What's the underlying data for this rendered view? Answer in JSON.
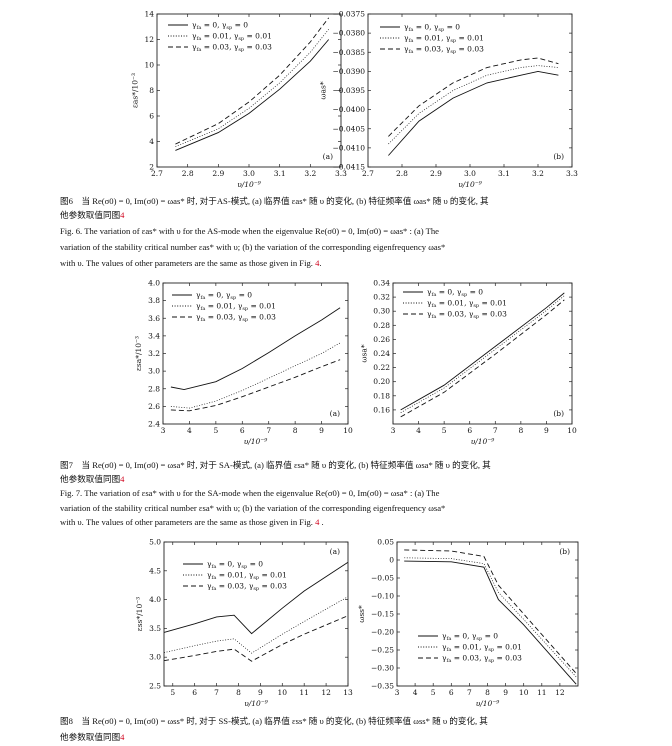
{
  "legend_symbol": {
    "gamma": "γ",
    "sub1": "fa",
    "sub2": "sp"
  },
  "legend_values": [
    [
      "0",
      "0"
    ],
    [
      "0.01",
      "0.01"
    ],
    [
      "0.03",
      "0.03"
    ]
  ],
  "chart_data": [
    {
      "id": "fig6a",
      "type": "line",
      "panel": "(a)",
      "xlabel": "υ/10⁻⁹",
      "ylabel": "εas*/10⁻³",
      "xlim": [
        2.7,
        3.3
      ],
      "ylim": [
        2,
        14
      ],
      "xticks": [
        "2.7",
        "2.8",
        "2.9",
        "3.0",
        "3.1",
        "3.2",
        "3.3"
      ],
      "yticks": [
        "2",
        "4",
        "6",
        "8",
        "10",
        "12",
        "14"
      ],
      "legend": "top-left",
      "series": [
        {
          "name": "γfa = 0, γsp = 0",
          "style": "solid",
          "x": [
            2.76,
            2.9,
            3.0,
            3.1,
            3.2,
            3.26
          ],
          "y": [
            3.3,
            4.7,
            6.2,
            8.1,
            10.3,
            12.0
          ]
        },
        {
          "name": "γfa = 0.01, γsp = 0.01",
          "style": "dotted",
          "x": [
            2.76,
            2.9,
            3.0,
            3.1,
            3.2,
            3.26
          ],
          "y": [
            3.6,
            5.0,
            6.6,
            8.6,
            11.0,
            12.8
          ]
        },
        {
          "name": "γfa = 0.03, γsp = 0.03",
          "style": "dashed",
          "x": [
            2.76,
            2.9,
            3.0,
            3.1,
            3.2,
            3.26
          ],
          "y": [
            3.8,
            5.4,
            7.1,
            9.2,
            11.8,
            13.7
          ]
        }
      ]
    },
    {
      "id": "fig6b",
      "type": "line",
      "panel": "(b)",
      "xlabel": "υ/10⁻⁹",
      "ylabel": "ωas*",
      "xlim": [
        2.7,
        3.3
      ],
      "ylim": [
        -0.0415,
        -0.0375
      ],
      "xticks": [
        "2.7",
        "2.8",
        "2.9",
        "3.0",
        "3.1",
        "3.2",
        "3.3"
      ],
      "yticks": [
        "−0.0415",
        "−0.0410",
        "−0.0405",
        "−0.0400",
        "−0.0395",
        "−0.0390",
        "−0.0385",
        "−0.0380",
        "−0.0375"
      ],
      "legend": "top-left",
      "series": [
        {
          "name": "γfa = 0, γsp = 0",
          "style": "solid",
          "x": [
            2.76,
            2.85,
            2.95,
            3.05,
            3.15,
            3.2,
            3.26
          ],
          "y": [
            -0.0412,
            -0.0403,
            -0.0397,
            -0.0393,
            -0.0391,
            -0.039,
            -0.0391
          ]
        },
        {
          "name": "γfa = 0.01, γsp = 0.01",
          "style": "dotted",
          "x": [
            2.76,
            2.85,
            2.95,
            3.05,
            3.15,
            3.2,
            3.26
          ],
          "y": [
            -0.0409,
            -0.0401,
            -0.0395,
            -0.0391,
            -0.0389,
            -0.03885,
            -0.0389
          ]
        },
        {
          "name": "γfa = 0.03, γsp = 0.03",
          "style": "dashed",
          "x": [
            2.76,
            2.85,
            2.95,
            3.05,
            3.15,
            3.2,
            3.26
          ],
          "y": [
            -0.0407,
            -0.0399,
            -0.0393,
            -0.0389,
            -0.0387,
            -0.03865,
            -0.0388
          ]
        }
      ]
    },
    {
      "id": "fig7a",
      "type": "line",
      "panel": "(a)",
      "xlabel": "υ/10⁻⁹",
      "ylabel": "εsa*/10⁻³",
      "xlim": [
        3,
        10
      ],
      "ylim": [
        2.4,
        4.0
      ],
      "xticks": [
        "3",
        "4",
        "5",
        "6",
        "7",
        "8",
        "9",
        "10"
      ],
      "yticks": [
        "2.4",
        "2.6",
        "2.8",
        "3.0",
        "3.2",
        "3.4",
        "3.6",
        "3.8",
        "4.0"
      ],
      "legend": "top-left",
      "series": [
        {
          "name": "γfa = 0, γsp = 0",
          "style": "solid",
          "x": [
            3.3,
            3.8,
            5,
            6,
            7,
            8,
            9,
            9.7
          ],
          "y": [
            2.82,
            2.79,
            2.88,
            3.03,
            3.21,
            3.4,
            3.58,
            3.72
          ]
        },
        {
          "name": "γfa = 0.01, γsp = 0.01",
          "style": "dotted",
          "x": [
            3.3,
            4,
            5,
            6,
            7,
            8,
            9,
            9.7
          ],
          "y": [
            2.6,
            2.58,
            2.66,
            2.78,
            2.92,
            3.06,
            3.2,
            3.32
          ]
        },
        {
          "name": "γfa = 0.03, γsp = 0.03",
          "style": "dashed",
          "x": [
            3.3,
            4,
            5,
            6,
            7,
            8,
            9,
            9.7
          ],
          "y": [
            2.56,
            2.55,
            2.61,
            2.71,
            2.82,
            2.93,
            3.05,
            3.13
          ]
        }
      ]
    },
    {
      "id": "fig7b",
      "type": "line",
      "panel": "(b)",
      "xlabel": "υ/10⁻⁹",
      "ylabel": "ωsa*",
      "xlim": [
        3,
        10
      ],
      "ylim": [
        0.14,
        0.34
      ],
      "xticks": [
        "3",
        "4",
        "5",
        "6",
        "7",
        "8",
        "9",
        "10"
      ],
      "yticks": [
        "0.16",
        "0.18",
        "0.20",
        "0.22",
        "0.24",
        "0.26",
        "0.28",
        "0.30",
        "0.32",
        "0.34"
      ],
      "legend": "top-left",
      "series": [
        {
          "name": "γfa = 0, γsp = 0",
          "style": "solid",
          "x": [
            3.3,
            5,
            7,
            9,
            9.7
          ],
          "y": [
            0.16,
            0.195,
            0.25,
            0.305,
            0.326
          ]
        },
        {
          "name": "γfa = 0.01, γsp = 0.01",
          "style": "dotted",
          "x": [
            3.3,
            5,
            7,
            9,
            9.7
          ],
          "y": [
            0.156,
            0.191,
            0.246,
            0.301,
            0.322
          ]
        },
        {
          "name": "γfa = 0.03, γsp = 0.03",
          "style": "dashed",
          "x": [
            3.3,
            5,
            7,
            9,
            9.7
          ],
          "y": [
            0.15,
            0.185,
            0.239,
            0.295,
            0.316
          ]
        }
      ]
    },
    {
      "id": "fig8a",
      "type": "line",
      "panel": "(a)",
      "xlabel": "υ/10⁻⁹",
      "ylabel": "εss*/10⁻³",
      "xlim": [
        4.6,
        13
      ],
      "ylim": [
        2.5,
        5.0
      ],
      "xticks": [
        "5",
        "6",
        "7",
        "8",
        "9",
        "10",
        "11",
        "12",
        "13"
      ],
      "yticks": [
        "2.5",
        "3.0",
        "3.5",
        "4.0",
        "4.5",
        "5.0"
      ],
      "legend": "top-left",
      "series": [
        {
          "name": "γfa = 0, γsp = 0",
          "style": "solid",
          "x": [
            4.6,
            6,
            7,
            7.8,
            8.6,
            10,
            11,
            13
          ],
          "y": [
            3.43,
            3.58,
            3.7,
            3.73,
            3.41,
            3.85,
            4.15,
            4.65
          ]
        },
        {
          "name": "γfa = 0.01, γsp = 0.01",
          "style": "dotted",
          "x": [
            4.6,
            6,
            7,
            7.8,
            8.6,
            10,
            11,
            13
          ],
          "y": [
            3.08,
            3.2,
            3.28,
            3.32,
            3.07,
            3.4,
            3.62,
            4.05
          ]
        },
        {
          "name": "γfa = 0.03, γsp = 0.03",
          "style": "dashed",
          "x": [
            4.6,
            6,
            7,
            7.8,
            8.6,
            10,
            11,
            13
          ],
          "y": [
            2.94,
            3.03,
            3.1,
            3.14,
            2.93,
            3.22,
            3.4,
            3.72
          ]
        }
      ]
    },
    {
      "id": "fig8b",
      "type": "line",
      "panel": "(b)",
      "xlabel": "υ/10⁻⁹",
      "ylabel": "ωss*",
      "xlim": [
        3,
        13
      ],
      "ylim": [
        -0.35,
        0.05
      ],
      "xticks": [
        "3",
        "4",
        "5",
        "6",
        "7",
        "8",
        "9",
        "10",
        "11",
        "12"
      ],
      "yticks": [
        "−0.35",
        "−0.30",
        "−0.25",
        "−0.20",
        "−0.15",
        "−0.10",
        "−0.05",
        "0",
        "0.05"
      ],
      "legend": "bottom-left",
      "series": [
        {
          "name": "γfa = 0, γsp = 0",
          "style": "solid",
          "x": [
            3.4,
            6,
            7.8,
            8.6,
            10,
            12.9
          ],
          "y": [
            -0.003,
            -0.005,
            -0.02,
            -0.11,
            -0.18,
            -0.345
          ]
        },
        {
          "name": "γfa = 0.01, γsp = 0.01",
          "style": "dotted",
          "x": [
            3.4,
            6,
            7.8,
            8.6,
            10,
            12.9
          ],
          "y": [
            0.006,
            0.004,
            -0.01,
            -0.09,
            -0.165,
            -0.325
          ]
        },
        {
          "name": "γfa = 0.03, γsp = 0.03",
          "style": "dashed",
          "x": [
            3.4,
            6,
            7.8,
            8.6,
            10,
            12.9
          ],
          "y": [
            0.028,
            0.025,
            0.01,
            -0.07,
            -0.15,
            -0.315
          ]
        }
      ]
    }
  ],
  "captions": {
    "fig6_cn_1": "图6　当 Re(σ0) = 0, Im(σ0) = ωas* 时, 对于AS-模式, (a) 临界值 εas* 随 υ 的变化, (b) 特征频率值 ωas* 随 υ 的变化, 其",
    "fig6_cn_2": "他参数取值同图",
    "fig6_en_1": "Fig. 6.  The variation of εas* with υ for the AS-mode when the eigenvalue Re(σ0) = 0, Im(σ0) = ωas* : (a) The",
    "fig6_en_2": "variation of the stability critical number εas* with υ; (b) the variation of the corresponding eigenfrequency ωas*",
    "fig6_en_3": "with υ. The values of other parameters are the same as those given in Fig.",
    "fig7_cn_1": "图7　当 Re(σ0) = 0, Im(σ0) = ωsa* 时, 对于 SA-模式, (a) 临界值 εsa* 随 υ 的变化, (b) 特征频率值 ωsa* 随 υ 的变化, 其",
    "fig7_cn_2": "他参数取值同图",
    "fig7_en_1": "Fig. 7.  The variation of εsa* with υ for the SA-mode when the eigenvalue Re(σ0) = 0, Im(σ0) = ωsa* : (a) The",
    "fig7_en_2": "variation of the stability critical number εsa* with υ; (b) the variation of the corresponding eigenfrequency ωsa*",
    "fig7_en_3": "with υ. The values of other parameters are the same as those given in Fig.",
    "fig8_cn_1": "图8　当 Re(σ0) = 0, Im(σ0) = ωss* 时, 对于 SS-模式, (a) 临界值 εss* 随 υ 的变化, (b) 特征频率值 ωss* 随 υ 的变化, 其",
    "fig8_cn_2": "他参数取值同图",
    "fig_ref": "4",
    "period": "."
  }
}
